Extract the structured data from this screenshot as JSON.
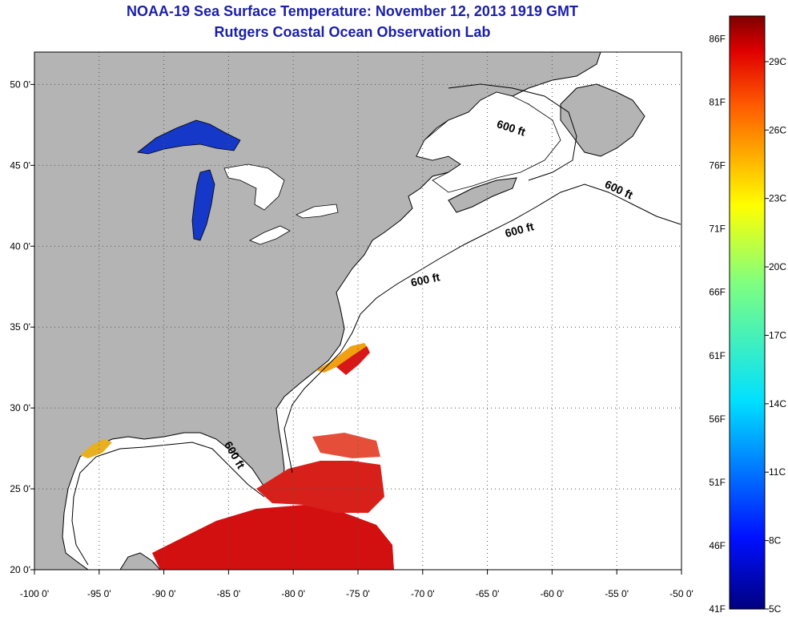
{
  "title_line1": "NOAA-19 Sea Surface Temperature:  November 12, 2013 1919 GMT",
  "title_line2": "Rutgers Coastal Ocean Observation Lab",
  "axes": {
    "lon_ticks": [
      "-100 0'",
      "-95 0'",
      "-90 0'",
      "-85 0'",
      "-80 0'",
      "-75 0'",
      "-70 0'",
      "-65 0'",
      "-60 0'",
      "-55 0'",
      "-50 0'"
    ],
    "lat_ticks": [
      "50 0'",
      "45 0'",
      "40 0'",
      "35 0'",
      "30 0'",
      "25 0'",
      "20 0'"
    ],
    "lon_range": [
      -100,
      -50
    ],
    "lat_range": [
      20,
      52
    ],
    "grid": "dotted"
  },
  "contour_labels": [
    "600 ft",
    "600 ft",
    "600 ft",
    "600 ft",
    "600 ft"
  ],
  "colorbar": {
    "fahrenheit_labels": [
      "86F",
      "81F",
      "76F",
      "71F",
      "66F",
      "61F",
      "56F",
      "51F",
      "46F",
      "41F"
    ],
    "celsius_labels": [
      "29C",
      "26C",
      "23C",
      "20C",
      "17C",
      "14C",
      "11C",
      "8C",
      "5C"
    ],
    "range_c": [
      5,
      31
    ]
  },
  "colors": {
    "land": "#b4b4b4",
    "ocean_no_data": "#ffffff",
    "title": "#1a1fa8",
    "warm": "#d01010",
    "cold": "#1030c8"
  }
}
